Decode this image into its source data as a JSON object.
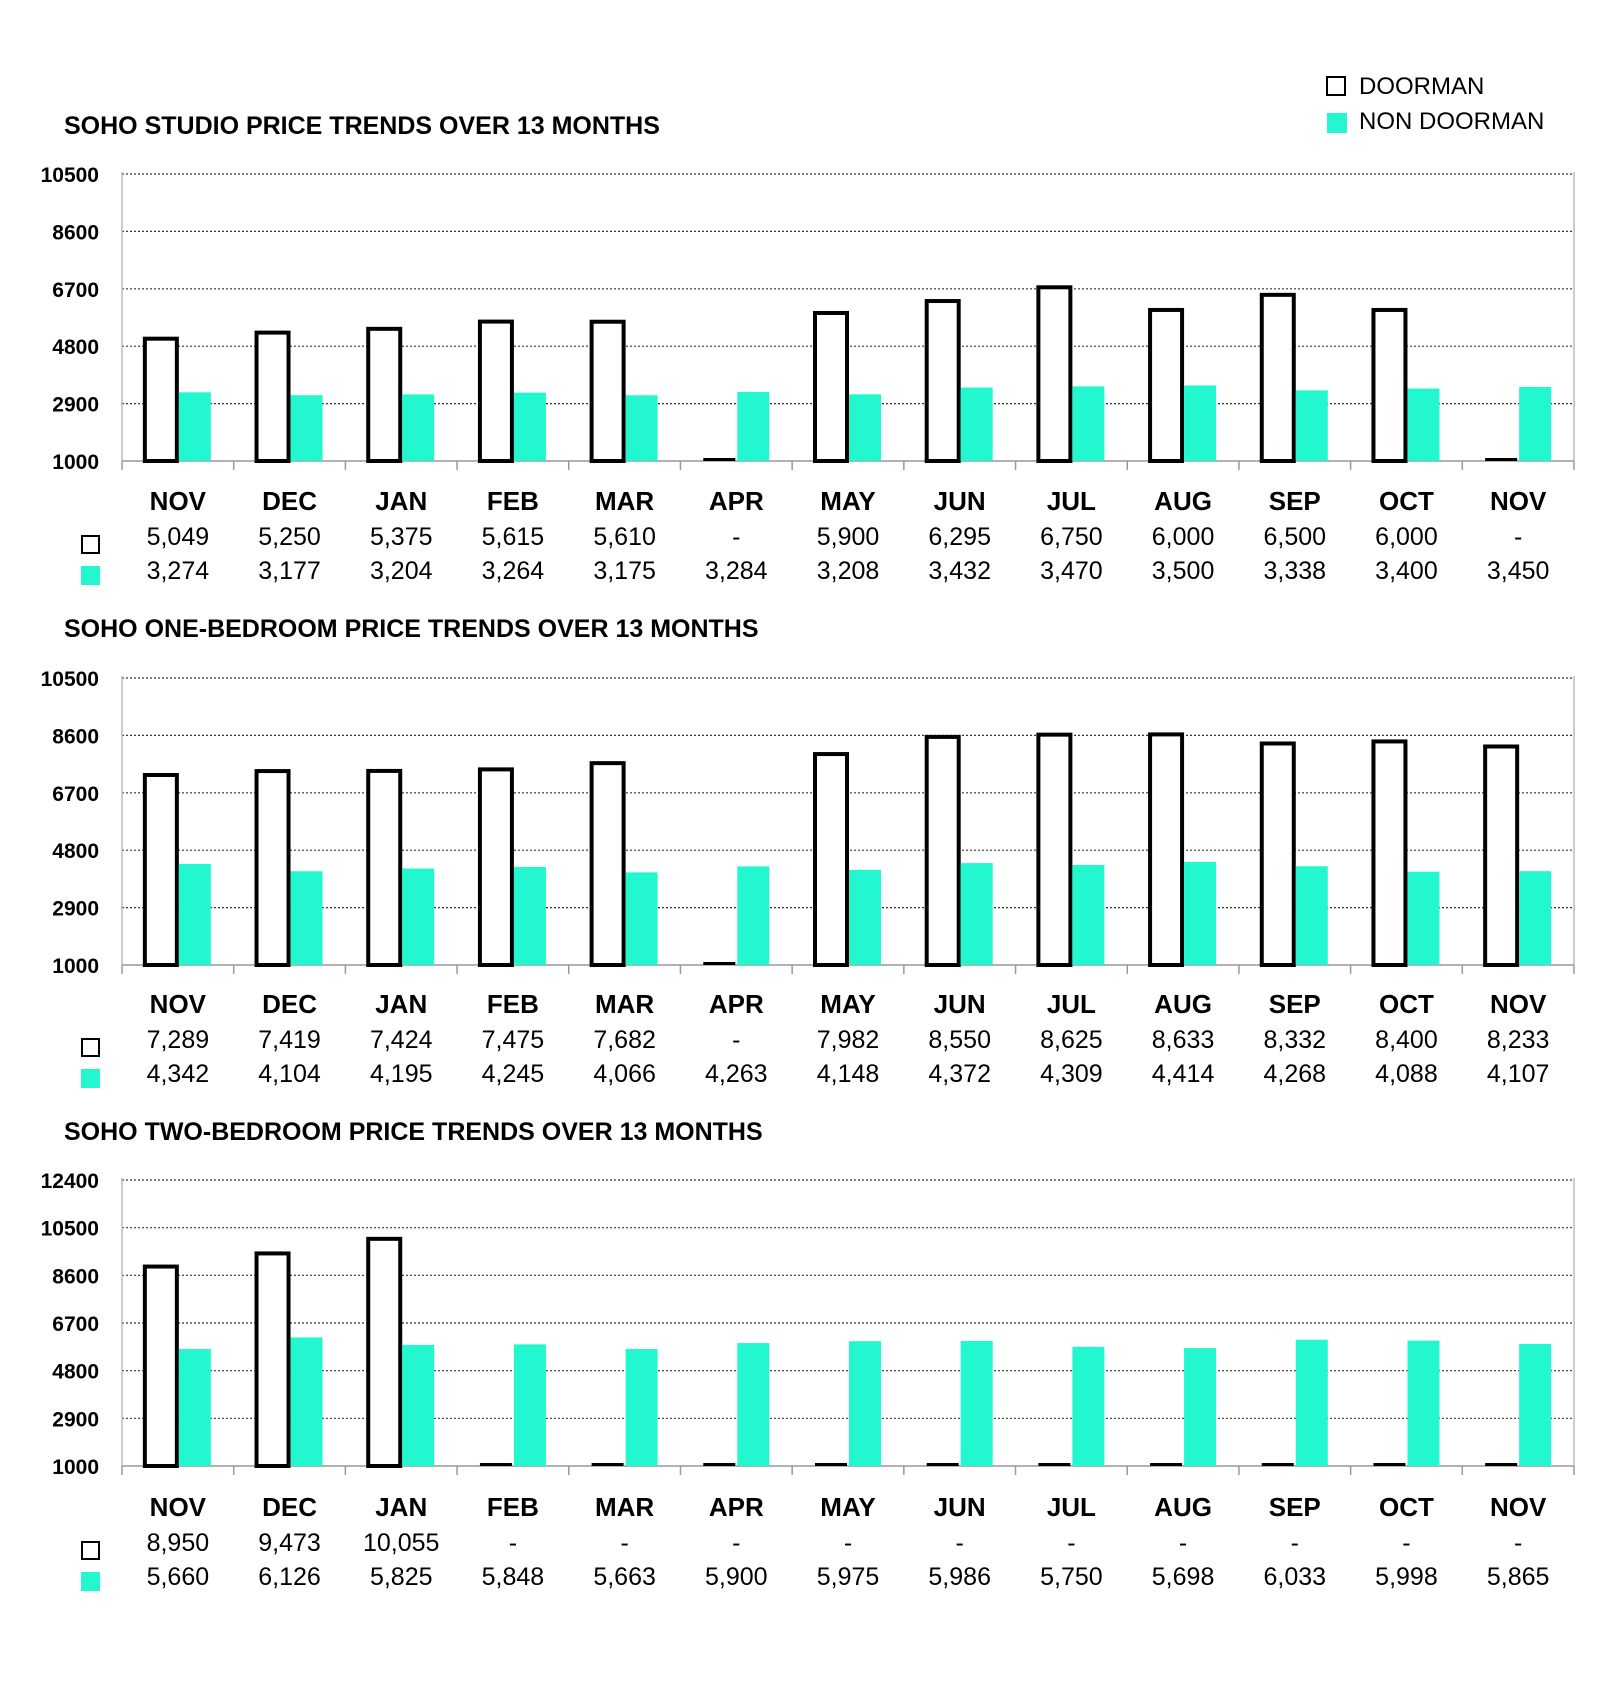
{
  "legend": {
    "doorman": "DOORMAN",
    "non_doorman": "NON DOORMAN"
  },
  "colors": {
    "doorman_fill": "#ffffff",
    "doorman_stroke": "#000000",
    "non_doorman_fill": "#22f7cf",
    "grid": "#333333",
    "text": "#000000"
  },
  "chart_data": [
    {
      "type": "bar",
      "title": "SOHO STUDIO PRICE TRENDS OVER 13 MONTHS",
      "categories": [
        "NOV",
        "DEC",
        "JAN",
        "FEB",
        "MAR",
        "APR",
        "MAY",
        "JUN",
        "JUL",
        "AUG",
        "SEP",
        "OCT",
        "NOV"
      ],
      "yticks": [
        "10500",
        "8600",
        "6700",
        "4800",
        "2900",
        "1000"
      ],
      "ylim": [
        1000,
        10500
      ],
      "series": [
        {
          "name": "DOORMAN",
          "values": [
            5049,
            5250,
            5375,
            5615,
            5610,
            null,
            5900,
            6295,
            6750,
            6000,
            6500,
            6000,
            null
          ],
          "labels": [
            "5,049",
            "5,250",
            "5,375",
            "5,615",
            "5,610",
            "-",
            "5,900",
            "6,295",
            "6,750",
            "6,000",
            "6,500",
            "6,000",
            "-"
          ]
        },
        {
          "name": "NON DOORMAN",
          "values": [
            3274,
            3177,
            3204,
            3264,
            3175,
            3284,
            3208,
            3432,
            3470,
            3500,
            3338,
            3400,
            3450
          ],
          "labels": [
            "3,274",
            "3,177",
            "3,204",
            "3,264",
            "3,175",
            "3,284",
            "3,208",
            "3,432",
            "3,470",
            "3,500",
            "3,338",
            "3,400",
            "3,450"
          ]
        }
      ]
    },
    {
      "type": "bar",
      "title": "SOHO ONE-BEDROOM PRICE TRENDS OVER 13 MONTHS",
      "categories": [
        "NOV",
        "DEC",
        "JAN",
        "FEB",
        "MAR",
        "APR",
        "MAY",
        "JUN",
        "JUL",
        "AUG",
        "SEP",
        "OCT",
        "NOV"
      ],
      "yticks": [
        "10500",
        "8600",
        "6700",
        "4800",
        "2900",
        "1000"
      ],
      "ylim": [
        1000,
        10500
      ],
      "series": [
        {
          "name": "DOORMAN",
          "values": [
            7289,
            7419,
            7424,
            7475,
            7682,
            null,
            7982,
            8550,
            8625,
            8633,
            8332,
            8400,
            8233
          ],
          "labels": [
            "7,289",
            "7,419",
            "7,424",
            "7,475",
            "7,682",
            "-",
            "7,982",
            "8,550",
            "8,625",
            "8,633",
            "8,332",
            "8,400",
            "8,233"
          ]
        },
        {
          "name": "NON DOORMAN",
          "values": [
            4342,
            4104,
            4195,
            4245,
            4066,
            4263,
            4148,
            4372,
            4309,
            4414,
            4268,
            4088,
            4107
          ],
          "labels": [
            "4,342",
            "4,104",
            "4,195",
            "4,245",
            "4,066",
            "4,263",
            "4,148",
            "4,372",
            "4,309",
            "4,414",
            "4,268",
            "4,088",
            "4,107"
          ]
        }
      ]
    },
    {
      "type": "bar",
      "title": "SOHO TWO-BEDROOM PRICE TRENDS OVER 13 MONTHS",
      "categories": [
        "NOV",
        "DEC",
        "JAN",
        "FEB",
        "MAR",
        "APR",
        "MAY",
        "JUN",
        "JUL",
        "AUG",
        "SEP",
        "OCT",
        "NOV"
      ],
      "yticks": [
        "12400",
        "10500",
        "8600",
        "6700",
        "4800",
        "2900",
        "1000"
      ],
      "ylim": [
        1000,
        12400
      ],
      "series": [
        {
          "name": "DOORMAN",
          "values": [
            8950,
            9473,
            10055,
            null,
            null,
            null,
            null,
            null,
            null,
            null,
            null,
            null,
            null
          ],
          "labels": [
            "8,950",
            "9,473",
            "10,055",
            "-",
            "-",
            "-",
            "-",
            "-",
            "-",
            "-",
            "-",
            "-",
            "-"
          ]
        },
        {
          "name": "NON DOORMAN",
          "values": [
            5660,
            6126,
            5825,
            5848,
            5663,
            5900,
            5975,
            5986,
            5750,
            5698,
            6033,
            5998,
            5865
          ],
          "labels": [
            "5,660",
            "6,126",
            "5,825",
            "5,848",
            "5,663",
            "5,900",
            "5,975",
            "5,986",
            "5,750",
            "5,698",
            "6,033",
            "5,998",
            "5,865"
          ]
        }
      ]
    }
  ]
}
